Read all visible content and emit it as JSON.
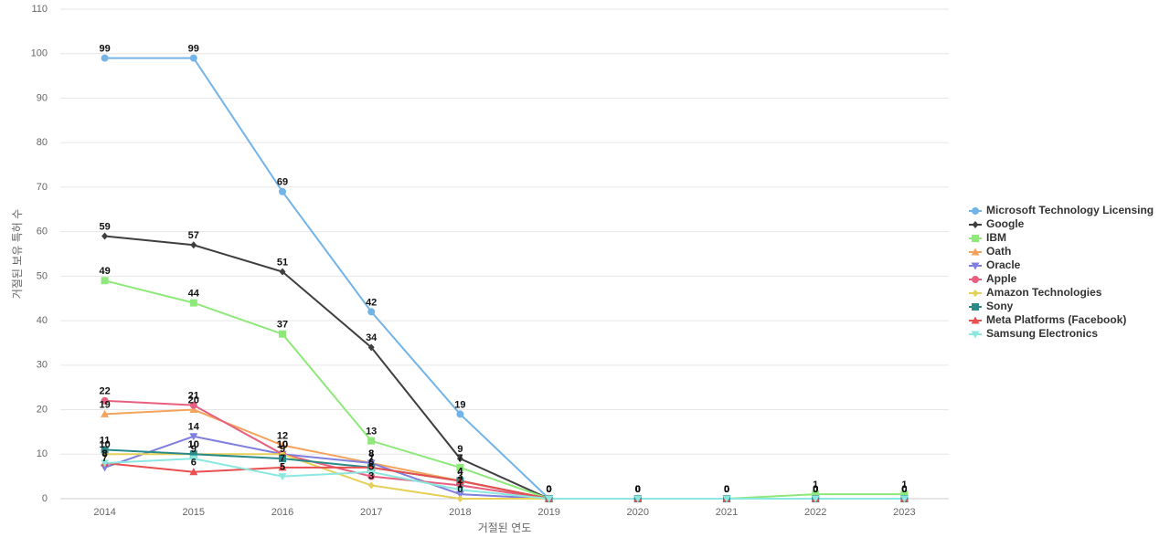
{
  "chart_data": {
    "type": "line",
    "x_label": "거절된 연도",
    "y_label": "거절된 보유 특허 수",
    "categories": [
      "2014",
      "2015",
      "2016",
      "2017",
      "2018",
      "2019",
      "2020",
      "2021",
      "2022",
      "2023"
    ],
    "ylim": [
      0,
      110
    ],
    "yticks": [
      0,
      10,
      20,
      30,
      40,
      50,
      60,
      70,
      80,
      90,
      100,
      110
    ],
    "grid": true,
    "legend": "right",
    "series": [
      {
        "name": "Microsoft Technology Licensing",
        "color": "#73b4e8",
        "symbol": "circle",
        "values": [
          99,
          99,
          69,
          42,
          19,
          0,
          0,
          0,
          0,
          0
        ]
      },
      {
        "name": "Google",
        "color": "#3f3f3f",
        "symbol": "diamond",
        "values": [
          59,
          57,
          51,
          34,
          9,
          0,
          0,
          0,
          0,
          0
        ]
      },
      {
        "name": "IBM",
        "color": "#8ee87a",
        "symbol": "square",
        "values": [
          49,
          44,
          37,
          13,
          7,
          0,
          0,
          0,
          1,
          1
        ]
      },
      {
        "name": "Oath",
        "color": "#f4a35c",
        "symbol": "triangle",
        "values": [
          19,
          20,
          12,
          8,
          4,
          0,
          0,
          0,
          0,
          0
        ]
      },
      {
        "name": "Oracle",
        "color": "#7f7fe0",
        "symbol": "triangle-down",
        "values": [
          7,
          14,
          10,
          8,
          1,
          0,
          0,
          0,
          0,
          0
        ]
      },
      {
        "name": "Apple",
        "color": "#e8607f",
        "symbol": "circle",
        "values": [
          22,
          21,
          10,
          5,
          3,
          0,
          0,
          0,
          0,
          0
        ]
      },
      {
        "name": "Amazon Technologies",
        "color": "#e5d05a",
        "symbol": "diamond",
        "values": [
          10,
          10,
          10,
          3,
          0,
          0,
          0,
          0,
          0,
          0
        ]
      },
      {
        "name": "Sony",
        "color": "#2a8a8a",
        "symbol": "square",
        "values": [
          11,
          10,
          9,
          7,
          4,
          0,
          0,
          0,
          0,
          0
        ]
      },
      {
        "name": "Meta Platforms (Facebook)",
        "color": "#e85050",
        "symbol": "triangle",
        "values": [
          8,
          6,
          7,
          7,
          4,
          0,
          0,
          0,
          0,
          0
        ]
      },
      {
        "name": "Samsung Electronics",
        "color": "#8ae8e0",
        "symbol": "triangle-down",
        "values": [
          8,
          9,
          5,
          6,
          2,
          0,
          0,
          0,
          0,
          0
        ]
      }
    ]
  }
}
